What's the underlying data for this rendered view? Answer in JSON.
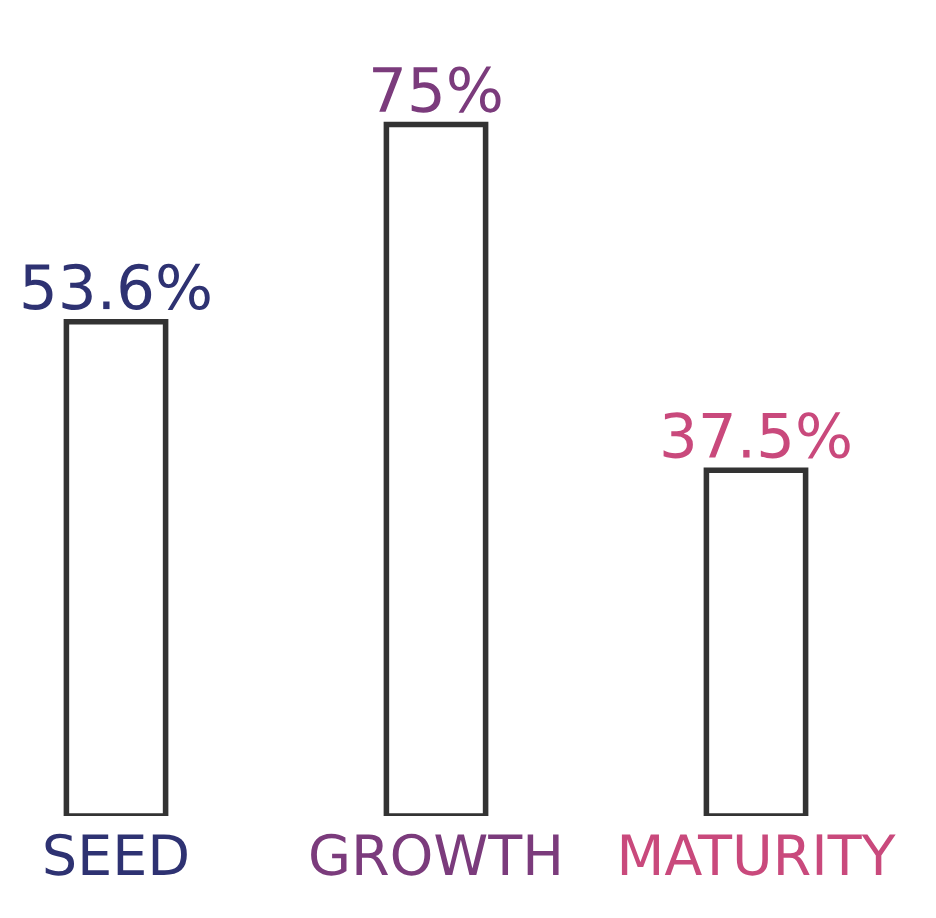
{
  "chart_data": {
    "type": "bar",
    "categories": [
      "SEED",
      "GROWTH",
      "MATURITY"
    ],
    "values": [
      53.6,
      75,
      37.5
    ],
    "value_labels": [
      "53.6%",
      "75%",
      "37.5%"
    ],
    "colors": [
      "#ffffff",
      "#ffffff",
      "#ffffff"
    ],
    "tick_labels": "x",
    "grid": false,
    "legend": false
  }
}
